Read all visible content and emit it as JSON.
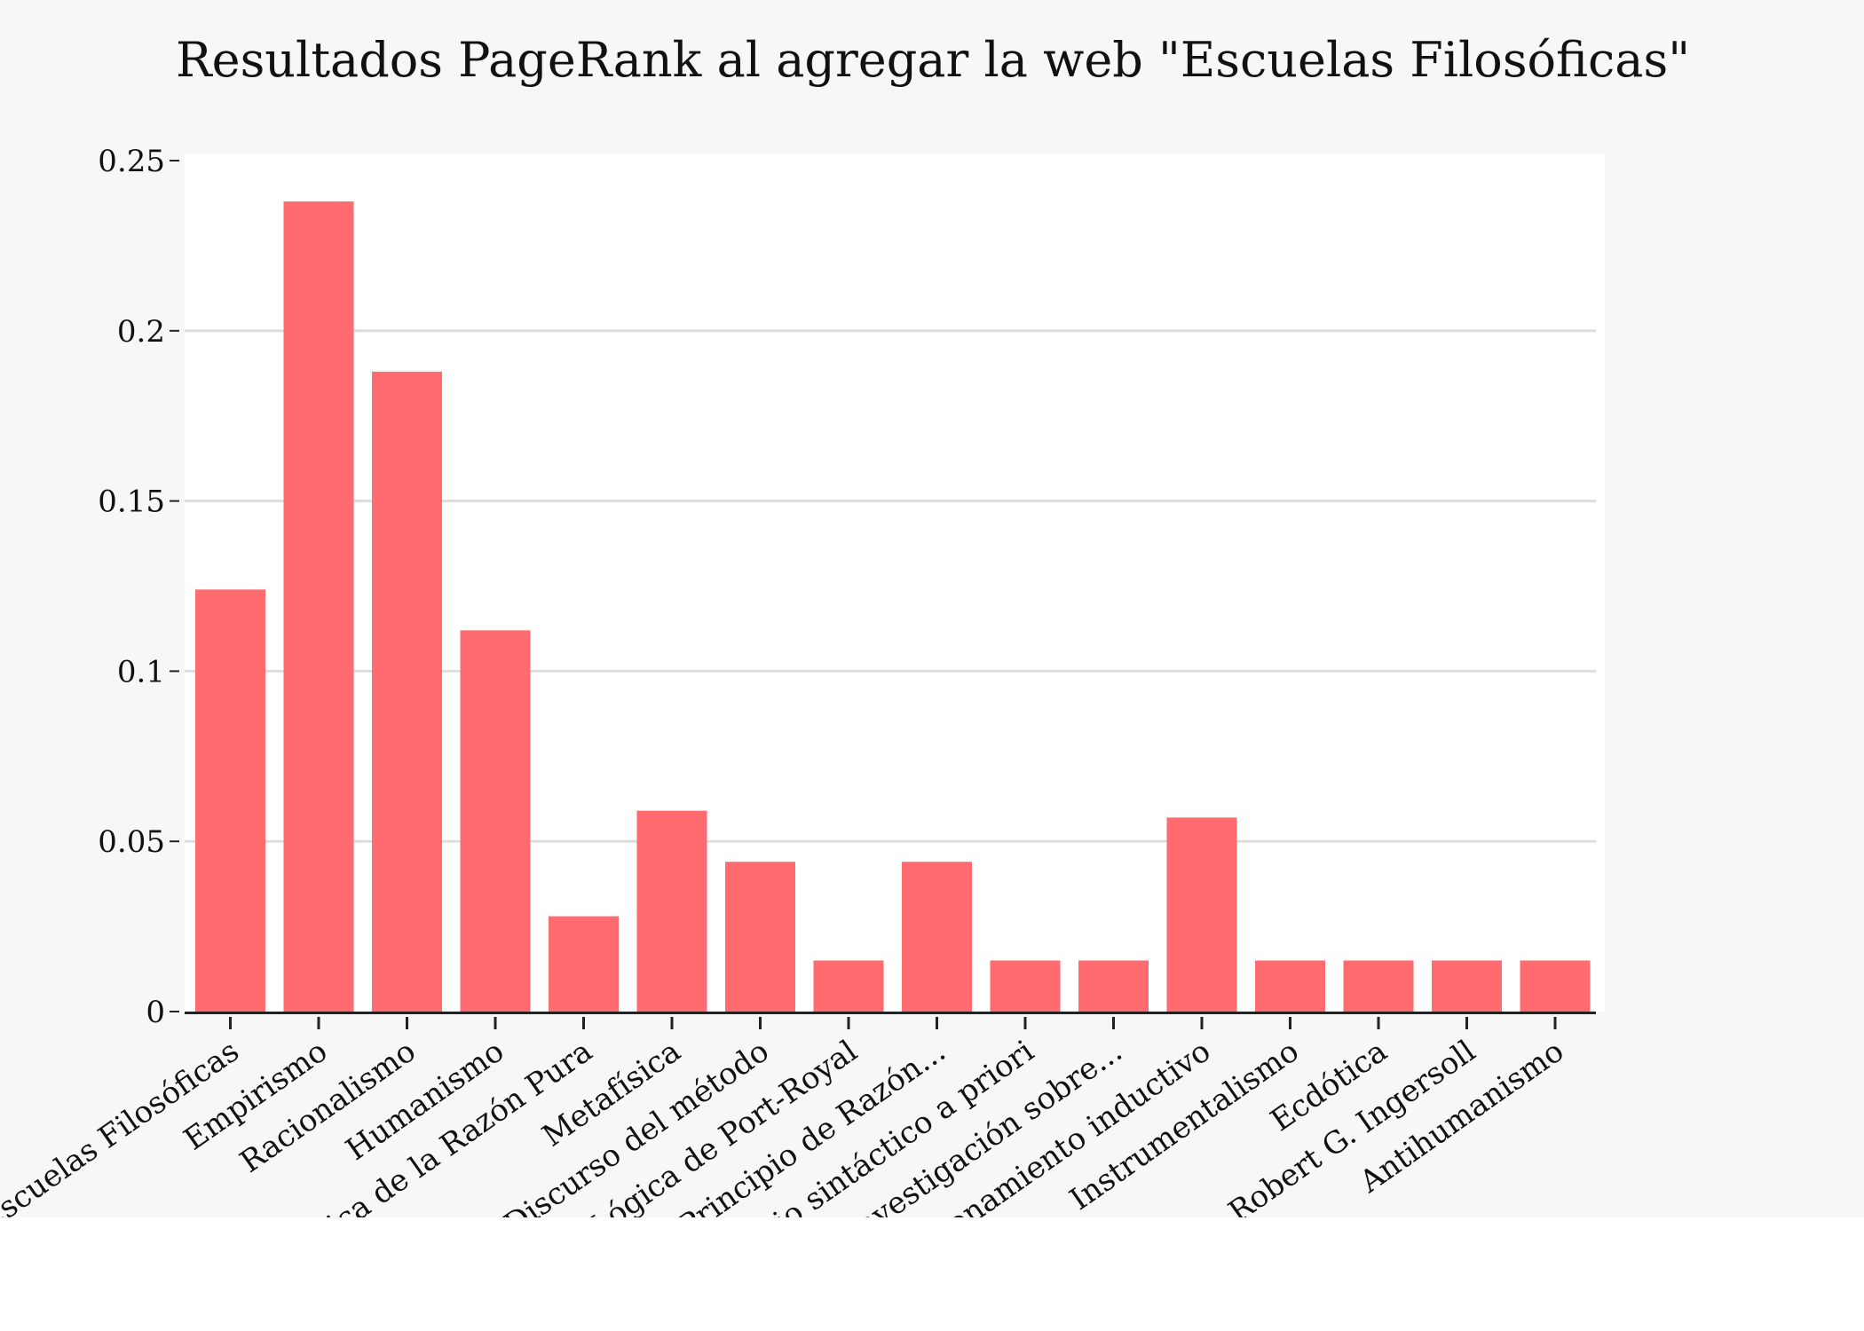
{
  "chart_data": {
    "type": "bar",
    "title": "Resultados PageRank al agregar la web \"Escuelas Filosóficas\"",
    "xlabel": "",
    "ylabel": "",
    "categories": [
      "Escuelas Filosóficas",
      "Empirismo",
      "Racionalismo",
      "Humanismo",
      "Crítica de la Razón Pura",
      "Metafísica",
      "Discurso del método",
      "Lógica de Port-Royal",
      "Principio de Razón...",
      "Juicio sintáctico a priori",
      "Investigación sobre...",
      "Razonamiento inductivo",
      "Instrumentalismo",
      "Ecdótica",
      "Robert G. Ingersoll",
      "Antihumanismo"
    ],
    "values": [
      0.124,
      0.238,
      0.188,
      0.112,
      0.028,
      0.059,
      0.044,
      0.015,
      0.044,
      0.015,
      0.015,
      0.057,
      0.015,
      0.015,
      0.015,
      0.015
    ],
    "ylim": [
      0,
      0.25
    ],
    "yticks": [
      0,
      0.05,
      0.1,
      0.15,
      0.2,
      0.25
    ],
    "ytick_labels": [
      "0",
      "0.05",
      "0.1",
      "0.15",
      "0.2",
      "0.25"
    ],
    "grid": true,
    "legend": "none",
    "colors": {
      "bar": "#ff6b6f",
      "plot_background": "#ffffff",
      "figure_background": "#f7f7f7",
      "grid": "#dddddd",
      "axis": "#222222"
    }
  }
}
